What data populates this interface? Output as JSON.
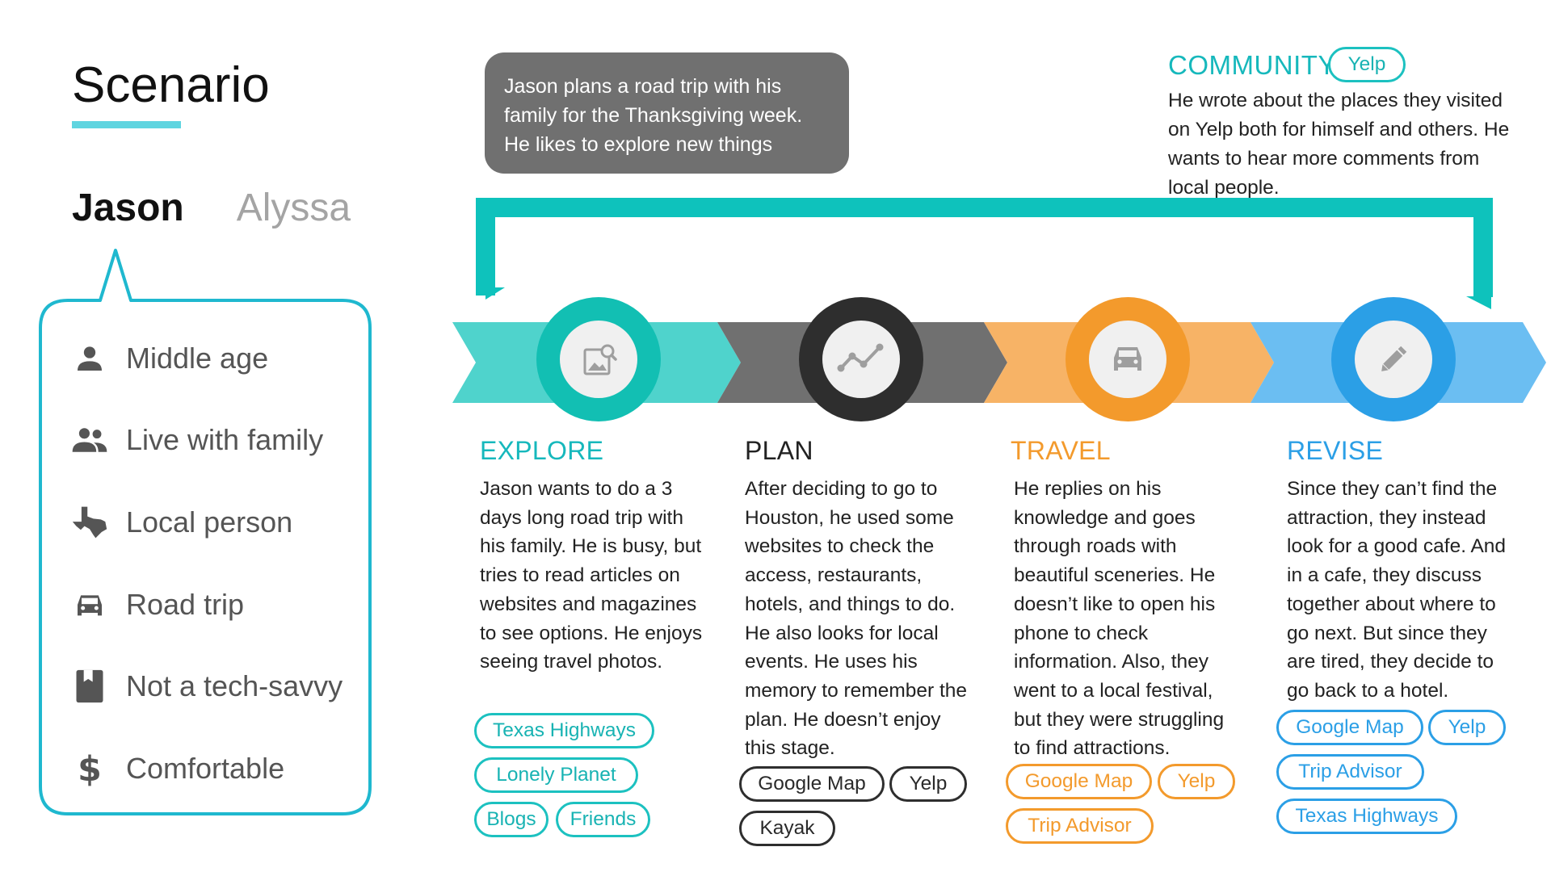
{
  "scenario": {
    "title": "Scenario",
    "tabs": [
      {
        "label": "Jason",
        "active": true
      },
      {
        "label": "Alyssa",
        "active": false
      }
    ],
    "attributes": [
      {
        "label": "Middle age",
        "icon": "person-icon"
      },
      {
        "label": "Live with family",
        "icon": "family-icon"
      },
      {
        "label": "Local person",
        "icon": "texas-icon"
      },
      {
        "label": "Road trip",
        "icon": "car-icon"
      },
      {
        "label": "Not a tech-savvy",
        "icon": "bookmark-icon"
      },
      {
        "label": "Comfortable",
        "icon": "dollar-icon"
      }
    ]
  },
  "intro": "Jason plans a road trip with his family for the Thanksgiving week. He likes to explore new things",
  "community": {
    "title": "COMMUNITY",
    "tag": "Yelp",
    "description": "He wrote about the places they visited on Yelp both for himself and others. He wants to hear more comments from local people."
  },
  "stages": [
    {
      "title": "EXPLORE",
      "icon": "image-search-icon",
      "description": "Jason wants to do a 3 days long road trip with his family. He is busy, but tries to read articles on websites and magazines to see options. He enjoys seeing travel photos.",
      "tags": [
        "Texas Highways",
        "Lonely Planet",
        "Blogs",
        "Friends"
      ]
    },
    {
      "title": "PLAN",
      "icon": "trend-icon",
      "description": "After deciding to go to Houston, he used some websites to check the access, restaurants, hotels, and things to do. He also looks for local events. He uses his memory to remember the plan. He doesn’t enjoy this stage.",
      "tags": [
        "Google Map",
        "Yelp",
        "Kayak"
      ]
    },
    {
      "title": "TRAVEL",
      "icon": "car-icon",
      "description": "He replies on his knowledge and goes through roads with beautiful sceneries. He doesn’t like to open his phone to check information. Also, they went to a local festival, but they were struggling to find attractions.",
      "tags": [
        "Google Map",
        "Yelp",
        "Trip Advisor"
      ]
    },
    {
      "title": "REVISE",
      "icon": "pencil-icon",
      "description": "Since they can’t find the attraction, they instead look for a good cafe. And in a cafe, they discuss together about where to go next. But since they are tired, they decide to go back to a hotel.",
      "tags": [
        "Google Map",
        "Yelp",
        "Trip Advisor",
        "Texas Highways"
      ]
    }
  ],
  "colors": {
    "teal": "#1cc1c0",
    "teal_light": "#4fd3cc",
    "dark": "#2e2e2e",
    "gray": "#707070",
    "orange": "#f39a2c",
    "orange_light": "#f7b366",
    "blue": "#2b9fe6",
    "blue_light": "#6bbef2",
    "card_border": "#1fb8cf"
  }
}
